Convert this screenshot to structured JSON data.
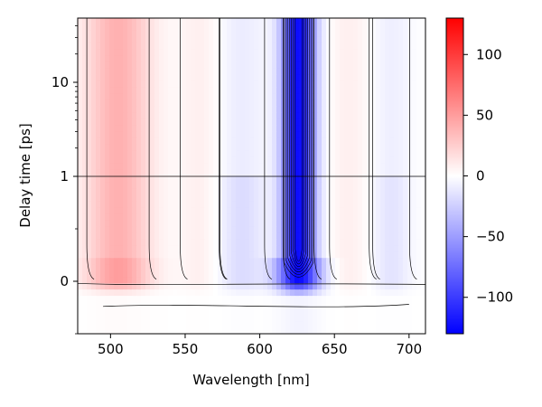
{
  "chart_data": {
    "type": "heatmap",
    "xlabel": "Wavelength [nm]",
    "ylabel": "Delay time [ps]",
    "xlim": [
      478,
      711
    ],
    "ylim_description": "linear -0.5 to 1, log 1 to 40",
    "x_ticks": [
      500,
      550,
      600,
      650,
      700
    ],
    "y_ticks": [
      {
        "value": 0,
        "label": "0"
      },
      {
        "value": 1,
        "label": "1"
      },
      {
        "value": 10,
        "label": "10"
      }
    ],
    "colorbar": {
      "range": [
        -130,
        130
      ],
      "ticks": [
        {
          "value": 100,
          "label": "100"
        },
        {
          "value": 50,
          "label": "50"
        },
        {
          "value": 0,
          "label": "0"
        },
        {
          "value": -50,
          "label": "−50"
        },
        {
          "value": -100,
          "label": "−100"
        }
      ],
      "colormap": "bwr",
      "colors": {
        "negative": "#0000ff",
        "zero": "#ffffff",
        "positive": "#ff0000"
      }
    },
    "features": [
      {
        "center_nm": 505,
        "width_nm": 22,
        "sign": "positive",
        "peak_value": 40,
        "description": "broad red band"
      },
      {
        "center_nm": 560,
        "width_nm": 14,
        "sign": "positive",
        "peak_value": 8
      },
      {
        "center_nm": 588,
        "width_nm": 16,
        "sign": "negative",
        "peak_value": -18
      },
      {
        "center_nm": 626,
        "width_nm": 11,
        "sign": "negative",
        "peak_value": -125,
        "description": "strong blue band"
      },
      {
        "center_nm": 660,
        "width_nm": 14,
        "sign": "positive",
        "peak_value": 8
      },
      {
        "center_nm": 688,
        "width_nm": 13,
        "sign": "negative",
        "peak_value": -14
      }
    ],
    "grid": false,
    "reference_line": {
      "y": 1
    }
  }
}
